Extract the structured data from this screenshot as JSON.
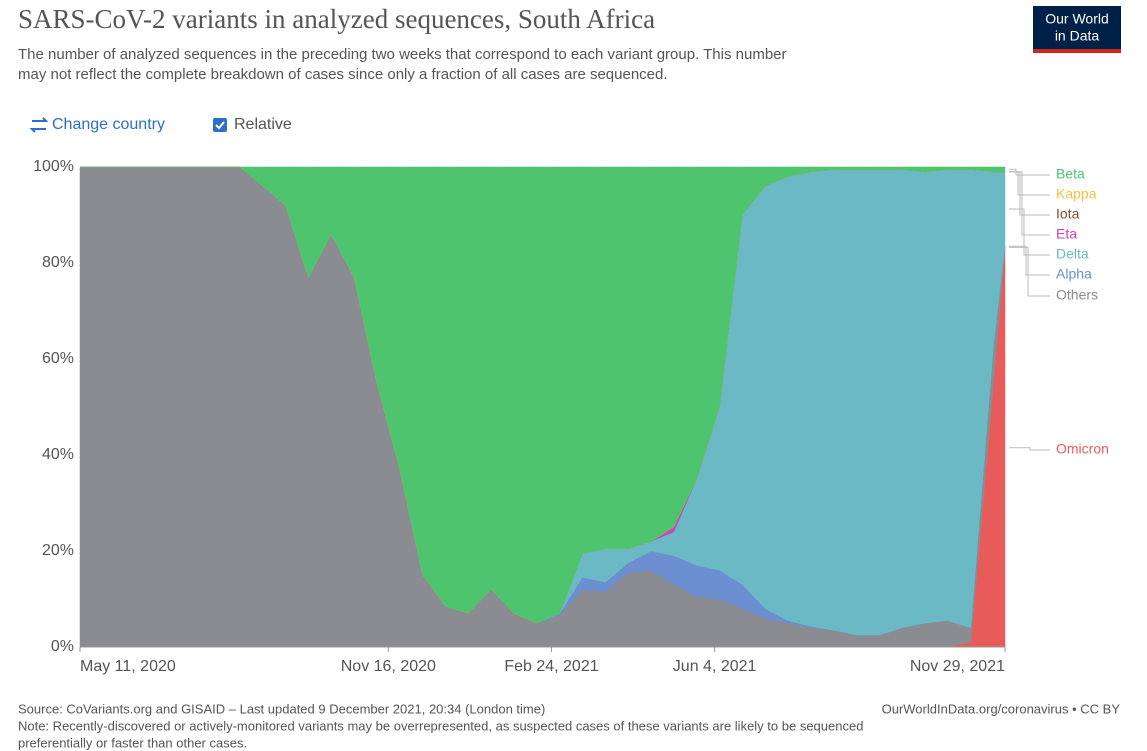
{
  "chart_data": {
    "type": "stacked_area",
    "title": "SARS-CoV-2 variants in analyzed sequences, South Africa",
    "subtitle": [
      "The number of analyzed sequences in the preceding two weeks that correspond to each variant group. This number",
      "may not reflect the complete breakdown of cases since only a fraction of all cases are sequenced."
    ],
    "controls": {
      "change_country": "Change country",
      "relative": "Relative"
    },
    "logo": [
      "Our World",
      "in Data"
    ],
    "source": "Source: CoVariants.org and GISAID – Last updated 9 December 2021, 20:34 (London time)",
    "url": "OurWorldInData.org/coronavirus • CC BY",
    "note": [
      "Note: Recently-discovered or actively-monitored variants may be overrepresented, as suspected cases of these variants are likely to be sequenced",
      "preferentially or faster than other cases."
    ],
    "x": [
      "2020-05-11",
      "2020-05-25",
      "2020-06-08",
      "2020-06-22",
      "2020-07-06",
      "2020-07-20",
      "2020-08-03",
      "2020-08-17",
      "2020-08-31",
      "2020-09-14",
      "2020-09-28",
      "2020-10-12",
      "2020-10-26",
      "2020-11-09",
      "2020-11-23",
      "2020-12-07",
      "2020-12-21",
      "2021-01-04",
      "2021-01-18",
      "2021-02-01",
      "2021-02-15",
      "2021-03-01",
      "2021-03-15",
      "2021-03-29",
      "2021-04-12",
      "2021-04-26",
      "2021-05-10",
      "2021-05-24",
      "2021-06-07",
      "2021-06-21",
      "2021-07-05",
      "2021-07-19",
      "2021-08-02",
      "2021-08-16",
      "2021-08-30",
      "2021-09-13",
      "2021-09-27",
      "2021-10-11",
      "2021-10-25",
      "2021-11-08",
      "2021-11-22",
      "2021-11-29"
    ],
    "xlim": [
      "2020-05-11",
      "2021-11-29"
    ],
    "xticks": [
      {
        "value": "2020-05-11",
        "label": "May 11, 2020"
      },
      {
        "value": "2020-11-16",
        "label": "Nov 16, 2020"
      },
      {
        "value": "2021-02-24",
        "label": "Feb 24, 2021"
      },
      {
        "value": "2021-06-04",
        "label": "Jun 4, 2021"
      },
      {
        "value": "2021-11-29",
        "label": "Nov 29, 2021"
      }
    ],
    "ylim": [
      0,
      100
    ],
    "yticks": [
      {
        "value": 0,
        "label": "0%"
      },
      {
        "value": 20,
        "label": "20%"
      },
      {
        "value": 40,
        "label": "40%"
      },
      {
        "value": 60,
        "label": "60%"
      },
      {
        "value": 80,
        "label": "80%"
      },
      {
        "value": 100,
        "label": "100%"
      }
    ],
    "grid": true,
    "series": [
      {
        "name": "Omicron",
        "color": "#e85b5b",
        "values": [
          0,
          0,
          0,
          0,
          0,
          0,
          0,
          0,
          0,
          0,
          0,
          0,
          0,
          0,
          0,
          0,
          0,
          0,
          0,
          0,
          0,
          0,
          0,
          0,
          0,
          0,
          0,
          0,
          0,
          0,
          0,
          0,
          0,
          0,
          0,
          0,
          0,
          0,
          0,
          1,
          55,
          83
        ]
      },
      {
        "name": "Others",
        "color": "#8a8c91",
        "values": [
          100,
          100,
          100,
          100,
          100,
          100,
          100,
          100,
          96,
          92,
          77,
          86,
          77,
          55,
          37,
          15,
          8.5,
          7,
          12,
          7,
          5,
          6.5,
          12,
          11.5,
          15.5,
          16,
          13,
          10.5,
          10,
          8,
          6,
          5,
          4,
          3.5,
          2.5,
          2.5,
          4,
          5,
          5.5,
          3,
          8,
          0.5
        ]
      },
      {
        "name": "Alpha",
        "color": "#6b8fd1",
        "values": [
          0,
          0,
          0,
          0,
          0,
          0,
          0,
          0,
          0,
          0,
          0,
          0,
          0,
          0,
          0,
          0,
          0,
          0,
          0,
          0,
          0,
          0.5,
          2.5,
          2,
          2,
          4,
          6,
          6.5,
          6,
          5,
          2,
          0.5,
          0.3,
          0,
          0,
          0,
          0,
          0,
          0,
          0,
          0,
          0
        ]
      },
      {
        "name": "Delta",
        "color": "#6ab9c4",
        "values": [
          0,
          0,
          0,
          0,
          0,
          0,
          0,
          0,
          0,
          0,
          0,
          0,
          0,
          0,
          0,
          0,
          0,
          0,
          0,
          0,
          0,
          0,
          5,
          7,
          3,
          2,
          5,
          18,
          34,
          77,
          88,
          92.5,
          94.7,
          96,
          97,
          97,
          95.5,
          94,
          94,
          95.5,
          36,
          15.5
        ]
      },
      {
        "name": "Eta",
        "color": "#d63fb5",
        "values": [
          0,
          0,
          0,
          0,
          0,
          0,
          0,
          0,
          0,
          0,
          0,
          0,
          0,
          0,
          0,
          0,
          0,
          0,
          0,
          0,
          0,
          0,
          0,
          0,
          0,
          0,
          1,
          0,
          0,
          0,
          0,
          0,
          0,
          0,
          0,
          0,
          0,
          0,
          0,
          0,
          0,
          0
        ]
      },
      {
        "name": "Iota",
        "color": "#8c4a2f",
        "values": [
          0,
          0,
          0,
          0,
          0,
          0,
          0,
          0,
          0,
          0,
          0,
          0,
          0,
          0,
          0,
          0,
          0,
          0,
          0,
          0,
          0,
          0,
          0,
          0,
          0,
          0,
          0,
          0,
          0,
          0,
          0,
          0,
          0,
          0,
          0,
          0,
          0,
          0,
          0,
          0,
          0,
          0
        ]
      },
      {
        "name": "Kappa",
        "color": "#f5c242",
        "values": [
          0,
          0,
          0,
          0,
          0,
          0,
          0,
          0,
          0,
          0,
          0,
          0,
          0,
          0,
          0,
          0,
          0,
          0,
          0,
          0,
          0,
          0,
          0,
          0,
          0,
          0,
          0,
          0,
          0,
          0,
          0,
          0,
          0,
          0,
          0,
          0,
          0,
          0,
          0,
          0,
          0,
          0
        ]
      },
      {
        "name": "Beta",
        "color": "#4fc46f",
        "values": [
          0,
          0,
          0,
          0,
          0,
          0,
          0,
          0,
          4,
          8,
          23,
          14,
          23,
          45,
          63,
          85,
          91.5,
          93,
          88,
          93,
          95,
          93,
          80.5,
          79.5,
          79.5,
          78,
          75,
          65,
          50,
          10,
          4,
          2,
          1,
          0.5,
          0.5,
          0.5,
          0.5,
          1,
          0.5,
          0.5,
          1,
          1
        ]
      }
    ]
  }
}
